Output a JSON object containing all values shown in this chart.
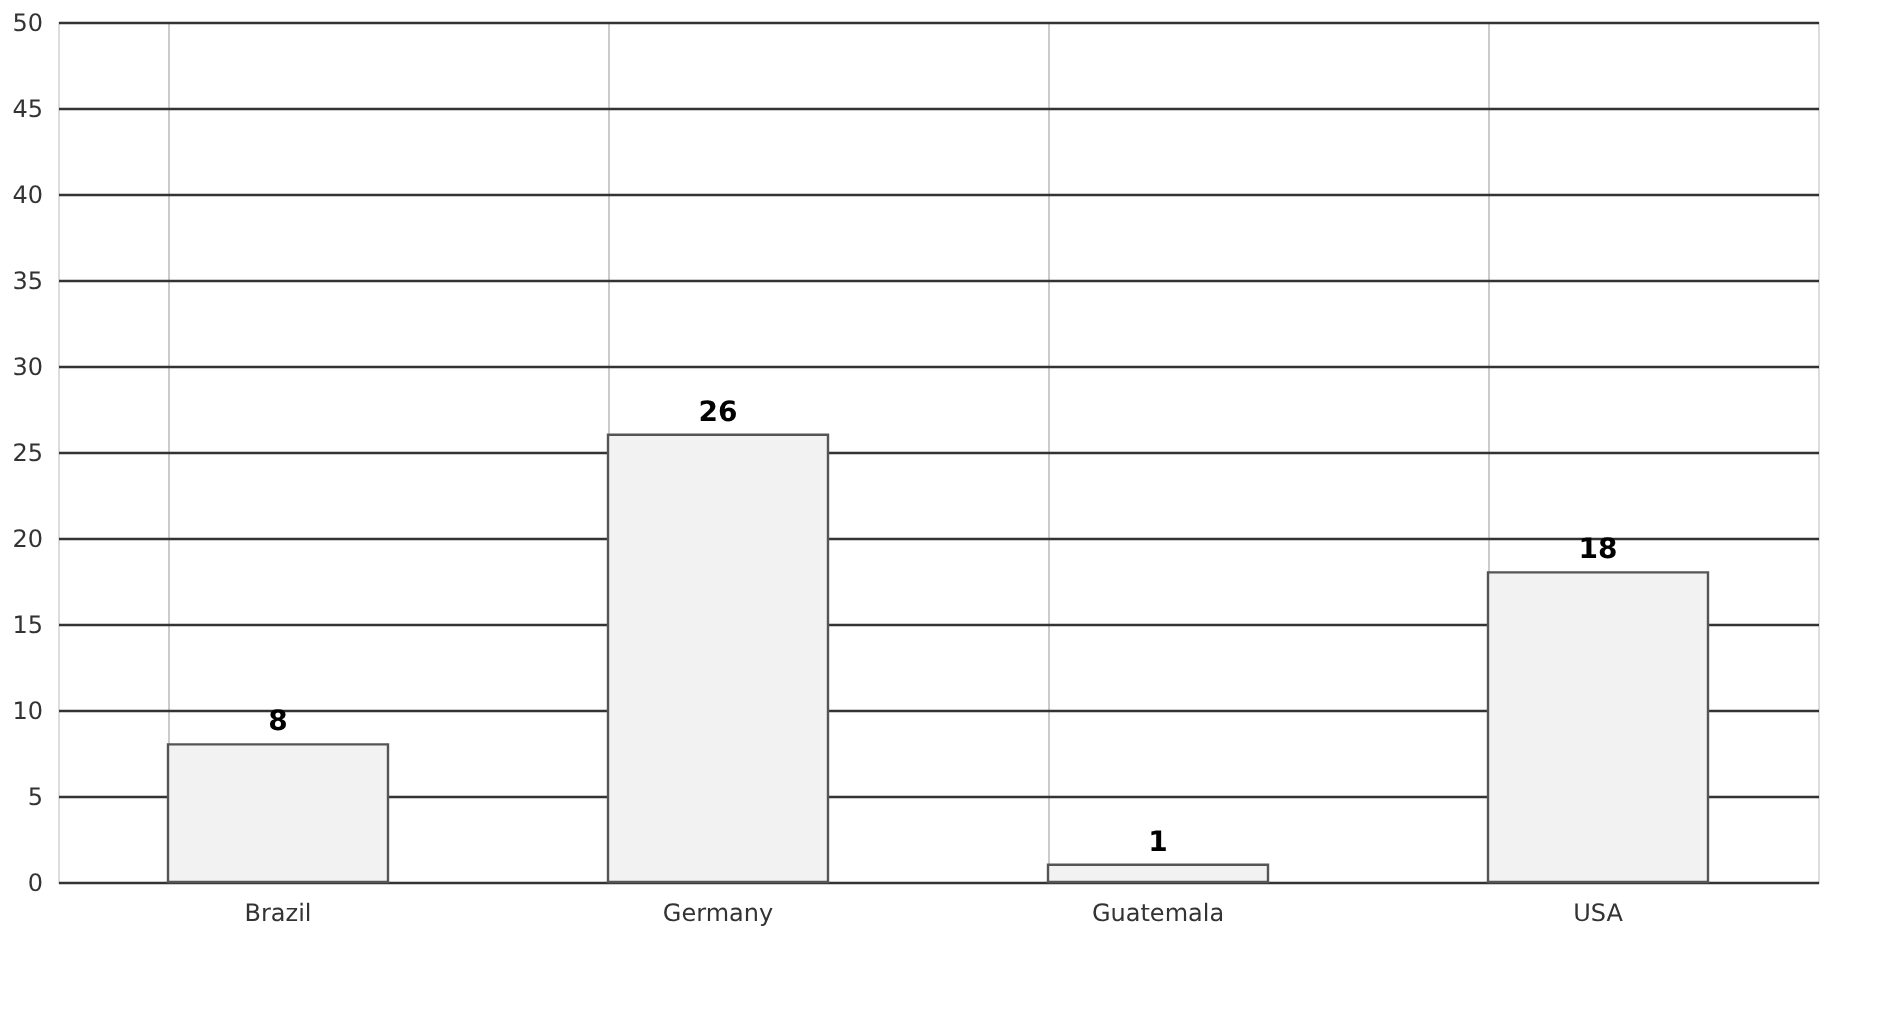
{
  "chart_data": {
    "type": "bar",
    "categories": [
      "Brazil",
      "Germany",
      "Guatemala",
      "USA"
    ],
    "values": [
      8,
      26,
      1,
      18
    ],
    "color": "#f2f2f2",
    "ylim": [
      0,
      50
    ],
    "yticks": [
      0,
      5,
      10,
      15,
      20,
      25,
      30,
      35,
      40,
      45,
      50
    ],
    "grid": true,
    "data_labels": true
  }
}
